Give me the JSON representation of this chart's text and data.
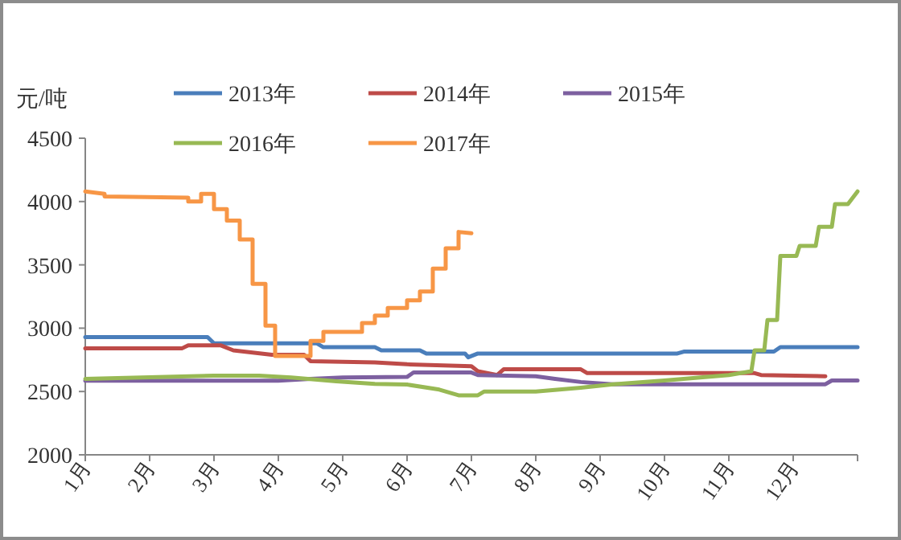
{
  "chart_data": {
    "type": "line",
    "ylabel": "元/吨",
    "legend": "top",
    "xlim": [
      1,
      13
    ],
    "ylim": [
      2000,
      4500
    ],
    "yticks": [
      2000,
      2500,
      3000,
      3500,
      4000,
      4500
    ],
    "xticks": [
      {
        "value": 1,
        "label": "1月"
      },
      {
        "value": 2,
        "label": "2月"
      },
      {
        "value": 3,
        "label": "3月"
      },
      {
        "value": 4,
        "label": "4月"
      },
      {
        "value": 5,
        "label": "5月"
      },
      {
        "value": 6,
        "label": "6月"
      },
      {
        "value": 7,
        "label": "7月"
      },
      {
        "value": 8,
        "label": "8月"
      },
      {
        "value": 9,
        "label": "9月"
      },
      {
        "value": 10,
        "label": "10月"
      },
      {
        "value": 11,
        "label": "11月"
      },
      {
        "value": 12,
        "label": "12月"
      },
      {
        "value": 13,
        "label": null
      }
    ],
    "series": [
      {
        "name": "2013年",
        "color": "#4a7ebb",
        "x": [
          1,
          2.9,
          3.0,
          4.6,
          4.7,
          5.5,
          5.6,
          6.2,
          6.3,
          6.9,
          6.95,
          7.1,
          10.2,
          10.3,
          11.7,
          11.8,
          13
        ],
        "values": [
          2930,
          2930,
          2880,
          2880,
          2850,
          2850,
          2825,
          2825,
          2800,
          2800,
          2770,
          2800,
          2800,
          2815,
          2815,
          2850,
          2850
        ]
      },
      {
        "name": "2014年",
        "color": "#be4b48",
        "x": [
          1,
          2.5,
          2.6,
          3.1,
          3.3,
          3.9,
          4.4,
          4.5,
          5.5,
          6.0,
          7.0,
          7.1,
          7.4,
          7.5,
          8.7,
          8.8,
          11.4,
          11.5,
          12.5
        ],
        "values": [
          2840,
          2840,
          2865,
          2865,
          2825,
          2790,
          2790,
          2740,
          2730,
          2715,
          2700,
          2660,
          2630,
          2675,
          2675,
          2645,
          2645,
          2630,
          2620
        ]
      },
      {
        "name": "2015年",
        "color": "#7d60a0",
        "x": [
          1,
          4.0,
          4.5,
          5.0,
          6.0,
          6.1,
          7.0,
          7.1,
          8.0,
          8.3,
          8.7,
          9.2,
          12.5,
          12.6,
          13
        ],
        "values": [
          2585,
          2585,
          2600,
          2610,
          2615,
          2650,
          2650,
          2630,
          2620,
          2600,
          2575,
          2557,
          2557,
          2587,
          2587
        ]
      },
      {
        "name": "2016年",
        "color": "#98b954",
        "x": [
          1,
          3.0,
          3.7,
          4.2,
          4.9,
          5.5,
          6.0,
          6.5,
          6.8,
          7.1,
          7.2,
          8.0,
          8.7,
          9.2,
          10.0,
          11.0,
          11.35,
          11.4,
          11.55,
          11.6,
          11.75,
          11.8,
          12.05,
          12.1,
          12.35,
          12.4,
          12.6,
          12.65,
          12.85,
          13
        ],
        "values": [
          2600,
          2625,
          2625,
          2610,
          2580,
          2560,
          2555,
          2515,
          2470,
          2470,
          2500,
          2500,
          2530,
          2557,
          2587,
          2630,
          2660,
          2825,
          2825,
          3065,
          3065,
          3570,
          3570,
          3650,
          3650,
          3800,
          3800,
          3980,
          3980,
          4080
        ]
      },
      {
        "name": "2017年",
        "color": "#f79646",
        "x": [
          1,
          1.3,
          1.3,
          2.6,
          2.6,
          2.8,
          2.8,
          3.0,
          3.0,
          3.2,
          3.2,
          3.4,
          3.4,
          3.6,
          3.6,
          3.8,
          3.8,
          3.95,
          3.95,
          4.5,
          4.5,
          4.7,
          4.7,
          5.3,
          5.3,
          5.5,
          5.5,
          5.7,
          5.7,
          6.0,
          6.0,
          6.2,
          6.2,
          6.4,
          6.4,
          6.6,
          6.6,
          6.8,
          6.8,
          7.0
        ],
        "values": [
          4080,
          4060,
          4040,
          4030,
          4000,
          4000,
          4060,
          4060,
          3940,
          3940,
          3850,
          3850,
          3700,
          3700,
          3350,
          3350,
          3020,
          3020,
          2780,
          2780,
          2900,
          2900,
          2970,
          2970,
          3040,
          3040,
          3100,
          3100,
          3160,
          3160,
          3220,
          3220,
          3290,
          3290,
          3470,
          3470,
          3630,
          3630,
          3760,
          3750
        ]
      }
    ]
  }
}
